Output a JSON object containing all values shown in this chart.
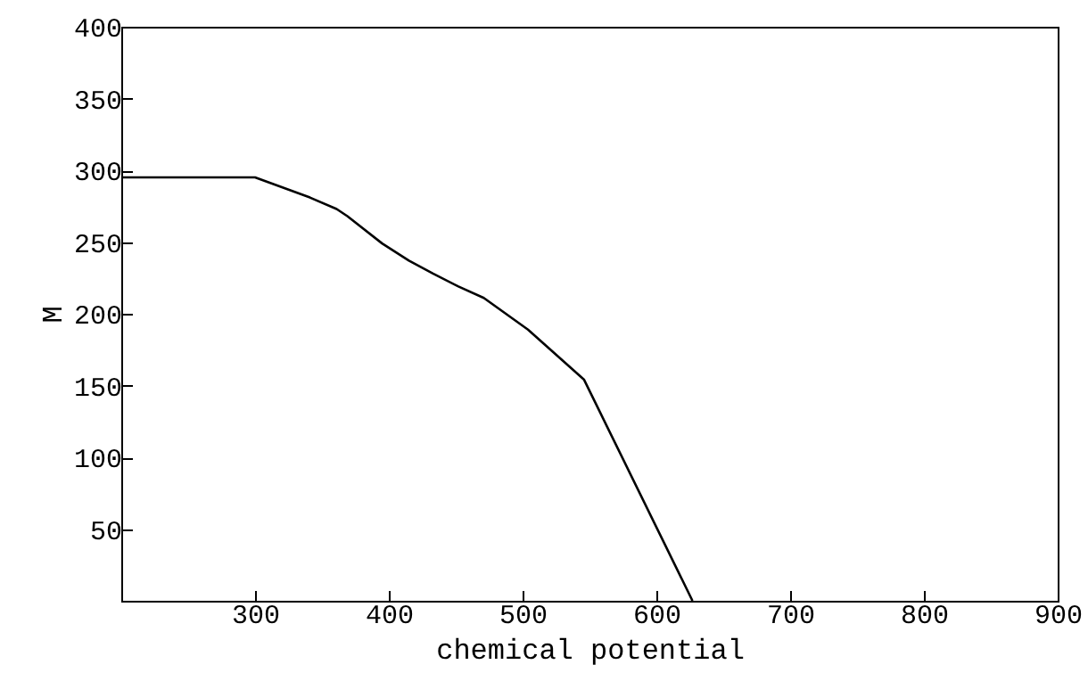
{
  "chart_data": {
    "type": "line",
    "xlabel": "chemical potential",
    "ylabel": "M",
    "x": [
      200,
      300,
      341,
      361,
      369,
      395,
      415,
      433,
      452,
      471,
      504,
      546,
      627
    ],
    "series": [
      {
        "color": "#000000",
        "values": [
          295,
          295,
          281,
          273,
          268,
          249,
          237,
          228,
          219,
          211,
          189,
          154,
          0
        ]
      }
    ],
    "xlim": [
      200,
      900
    ],
    "xticks": [
      300,
      400,
      500,
      600,
      700,
      800,
      900
    ],
    "ylim": [
      0,
      400
    ],
    "yticks": [
      50,
      100,
      150,
      200,
      250,
      300,
      350,
      400
    ],
    "grid": false,
    "legend": false,
    "marker": "none",
    "line_style": "solid"
  }
}
